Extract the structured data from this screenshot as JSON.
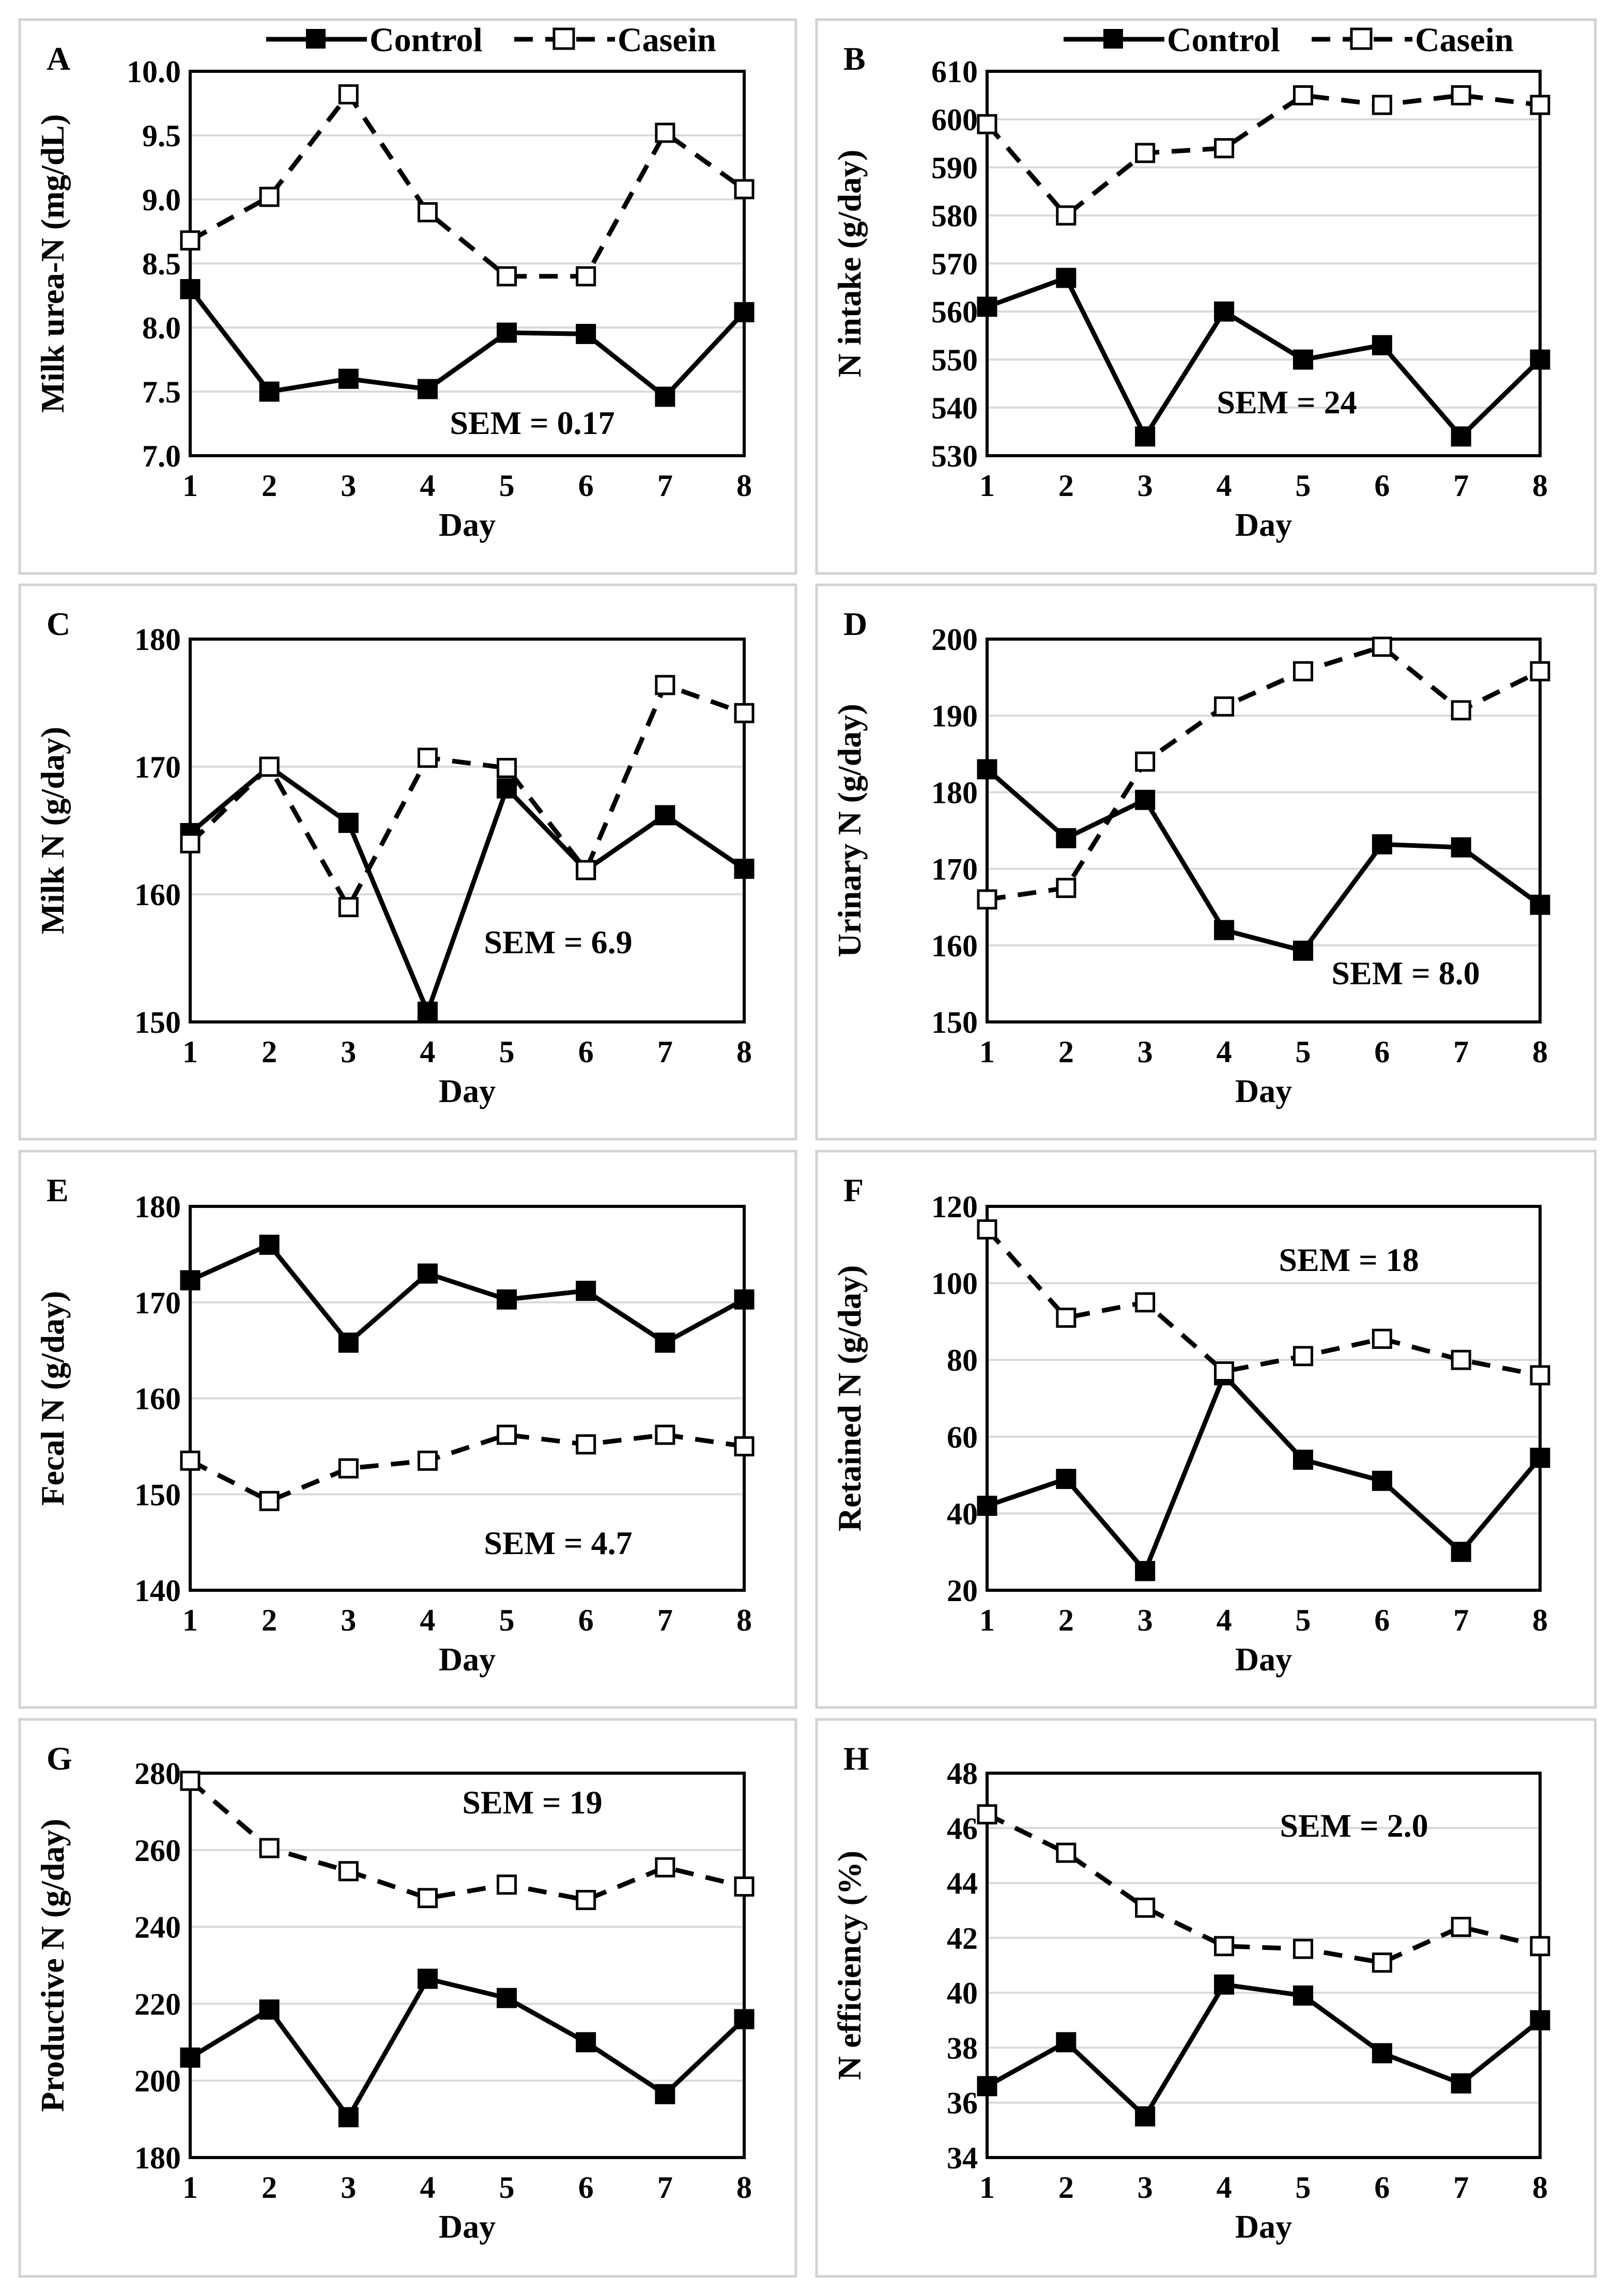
{
  "legend": {
    "control_label": "Control",
    "casein_label": "Casein"
  },
  "chart_data": [
    {
      "id": "A",
      "type": "line",
      "letter": "A",
      "ylabel": "Milk urea-N (mg/dL)",
      "xlabel": "Day",
      "ylim": [
        7.0,
        10.0
      ],
      "ystep": 0.5,
      "ydecimals": 1,
      "categories": [
        "1",
        "2",
        "3",
        "4",
        "5",
        "6",
        "7",
        "8"
      ],
      "sem_label": "SEM = 0.17",
      "series": [
        {
          "name": "Control",
          "values": [
            8.3,
            7.5,
            7.6,
            7.52,
            7.96,
            7.95,
            7.46,
            8.12
          ]
        },
        {
          "name": "Casein",
          "values": [
            8.68,
            9.02,
            9.82,
            8.9,
            8.4,
            8.4,
            9.52,
            9.08
          ]
        }
      ]
    },
    {
      "id": "B",
      "type": "line",
      "letter": "B",
      "ylabel": "N intake (g/day)",
      "xlabel": "Day",
      "ylim": [
        530,
        610
      ],
      "ystep": 10,
      "ydecimals": 0,
      "categories": [
        "1",
        "2",
        "3",
        "4",
        "5",
        "6",
        "7",
        "8"
      ],
      "sem_label": "SEM = 24",
      "series": [
        {
          "name": "Control",
          "values": [
            561,
            567,
            534,
            560,
            550,
            553,
            534,
            550
          ]
        },
        {
          "name": "Casein",
          "values": [
            599,
            580,
            593,
            594,
            605,
            603,
            605,
            603
          ]
        }
      ]
    },
    {
      "id": "C",
      "type": "line",
      "letter": "C",
      "ylabel": "Milk N (g/day)",
      "xlabel": "Day",
      "ylim": [
        150,
        180
      ],
      "ystep": 10,
      "ydecimals": 0,
      "categories": [
        "1",
        "2",
        "3",
        "4",
        "5",
        "6",
        "7",
        "8"
      ],
      "sem_label": "SEM = 6.9",
      "series": [
        {
          "name": "Control",
          "values": [
            164.8,
            170,
            165.6,
            150.8,
            168.3,
            161.9,
            166.2,
            162
          ]
        },
        {
          "name": "Casein",
          "values": [
            164,
            170,
            159,
            170.7,
            169.9,
            161.9,
            176.4,
            174.2
          ]
        }
      ]
    },
    {
      "id": "D",
      "type": "line",
      "letter": "D",
      "ylabel": "Urinary N (g/day)",
      "xlabel": "Day",
      "ylim": [
        150,
        200
      ],
      "ystep": 10,
      "ydecimals": 0,
      "categories": [
        "1",
        "2",
        "3",
        "4",
        "5",
        "6",
        "7",
        "8"
      ],
      "sem_label": "SEM = 8.0",
      "series": [
        {
          "name": "Control",
          "values": [
            183,
            174,
            179,
            162,
            159.3,
            173.2,
            172.8,
            165.3
          ]
        },
        {
          "name": "Casein",
          "values": [
            166,
            167.5,
            184,
            191.2,
            195.8,
            199,
            190.7,
            195.8
          ]
        }
      ]
    },
    {
      "id": "E",
      "type": "line",
      "letter": "E",
      "ylabel": "Fecal N (g/day)",
      "xlabel": "Day",
      "ylim": [
        140,
        180
      ],
      "ystep": 10,
      "ydecimals": 0,
      "categories": [
        "1",
        "2",
        "3",
        "4",
        "5",
        "6",
        "7",
        "8"
      ],
      "sem_label": "SEM = 4.7",
      "series": [
        {
          "name": "Control",
          "values": [
            172.3,
            176,
            165.8,
            173,
            170.3,
            171.2,
            165.8,
            170.3
          ]
        },
        {
          "name": "Casein",
          "values": [
            153.5,
            149.3,
            152.7,
            153.5,
            156.2,
            155.2,
            156.2,
            155
          ]
        }
      ]
    },
    {
      "id": "F",
      "type": "line",
      "letter": "F",
      "ylabel": "Retained N (g/day)",
      "xlabel": "Day",
      "ylim": [
        20,
        120
      ],
      "ystep": 20,
      "ydecimals": 0,
      "categories": [
        "1",
        "2",
        "3",
        "4",
        "5",
        "6",
        "7",
        "8"
      ],
      "sem_label": "SEM = 18",
      "series": [
        {
          "name": "Control",
          "values": [
            42,
            49,
            25,
            76,
            54,
            48.5,
            30,
            54.5
          ]
        },
        {
          "name": "Casein",
          "values": [
            114,
            91,
            95,
            77,
            81,
            85.5,
            80,
            76
          ]
        }
      ]
    },
    {
      "id": "G",
      "type": "line",
      "letter": "G",
      "ylabel": "Productive N (g/day)",
      "xlabel": "Day",
      "ylim": [
        180,
        280
      ],
      "ystep": 20,
      "ydecimals": 0,
      "categories": [
        "1",
        "2",
        "3",
        "4",
        "5",
        "6",
        "7",
        "8"
      ],
      "sem_label": "SEM = 19",
      "series": [
        {
          "name": "Control",
          "values": [
            206,
            218.5,
            190.5,
            226.5,
            221.5,
            210,
            196.5,
            216
          ]
        },
        {
          "name": "Casein",
          "values": [
            278,
            260.5,
            254.5,
            247.5,
            251,
            247,
            255.5,
            250.5
          ]
        }
      ]
    },
    {
      "id": "H",
      "type": "line",
      "letter": "H",
      "ylabel": "N efficiency (%)",
      "xlabel": "Day",
      "ylim": [
        34,
        48
      ],
      "ystep": 2,
      "ydecimals": 0,
      "categories": [
        "1",
        "2",
        "3",
        "4",
        "5",
        "6",
        "7",
        "8"
      ],
      "sem_label": "SEM = 2.0",
      "series": [
        {
          "name": "Control",
          "values": [
            36.6,
            38.2,
            35.5,
            40.3,
            39.9,
            37.8,
            36.7,
            39
          ]
        },
        {
          "name": "Casein",
          "values": [
            46.5,
            45.1,
            43.1,
            41.7,
            41.6,
            41.1,
            42.4,
            41.7
          ]
        }
      ]
    }
  ]
}
